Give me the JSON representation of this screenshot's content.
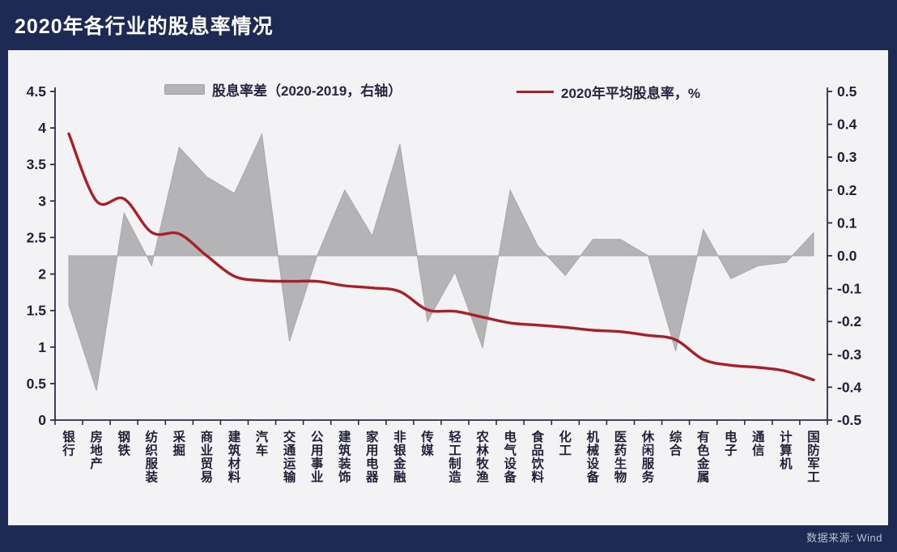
{
  "title": "2020年各行业的股息率情况",
  "source_note": "数据来源: Wind",
  "colors": {
    "background": "#1c2a54",
    "panel": "#f3f3f5",
    "area_fill": "#b4b4b6",
    "area_edge": "#a8a8aa",
    "line": "#a82028",
    "axis": "#2b2b49",
    "axis_text": "#1f1f38",
    "title_text": "#ffffff",
    "source_text": "#b9bfcc"
  },
  "chart_data": {
    "type": "combo",
    "title": "2020年各行业的股息率情况",
    "grid": false,
    "legend_position": "top",
    "categories": [
      "银行",
      "房地产",
      "钢铁",
      "纺织服装",
      "采掘",
      "商业贸易",
      "建筑材料",
      "汽车",
      "交通运输",
      "公用事业",
      "建筑装饰",
      "家用电器",
      "非银金融",
      "传媒",
      "轻工制造",
      "农林牧渔",
      "电气设备",
      "食品饮料",
      "化工",
      "机械设备",
      "医药生物",
      "休闲服务",
      "综合",
      "有色金属",
      "电子",
      "通信",
      "计算机",
      "国防军工"
    ],
    "series": [
      {
        "name": "股息率差（2020-2019，右轴）",
        "type": "area",
        "axis": "right",
        "color": "#b4b4b6",
        "values": [
          -0.15,
          -0.41,
          0.13,
          -0.03,
          0.33,
          0.24,
          0.19,
          0.37,
          -0.26,
          0.0,
          0.2,
          0.06,
          0.34,
          -0.2,
          -0.05,
          -0.28,
          0.2,
          0.03,
          -0.06,
          0.05,
          0.05,
          0.0,
          -0.29,
          0.08,
          -0.07,
          -0.03,
          -0.02,
          0.07
        ]
      },
      {
        "name": "2020年平均股息率，%",
        "type": "line",
        "axis": "left",
        "color": "#a82028",
        "values": [
          3.92,
          3.0,
          3.03,
          2.57,
          2.55,
          2.25,
          1.97,
          1.91,
          1.9,
          1.9,
          1.84,
          1.81,
          1.76,
          1.51,
          1.49,
          1.41,
          1.33,
          1.3,
          1.27,
          1.23,
          1.21,
          1.16,
          1.1,
          0.83,
          0.75,
          0.72,
          0.67,
          0.55
        ]
      }
    ],
    "left_axis": {
      "min": 0,
      "max": 4.5,
      "step": 0.5,
      "labels": [
        "0",
        "0.5",
        "1",
        "1.5",
        "2",
        "2.5",
        "3",
        "3.5",
        "4",
        "4.5"
      ]
    },
    "right_axis": {
      "min": -0.5,
      "max": 0.5,
      "step": 0.1,
      "labels": [
        "-0.5",
        "-0.4",
        "-0.3",
        "-0.2",
        "-0.1",
        "0.0",
        "0.1",
        "0.2",
        "0.3",
        "0.4",
        "0.5"
      ]
    }
  }
}
